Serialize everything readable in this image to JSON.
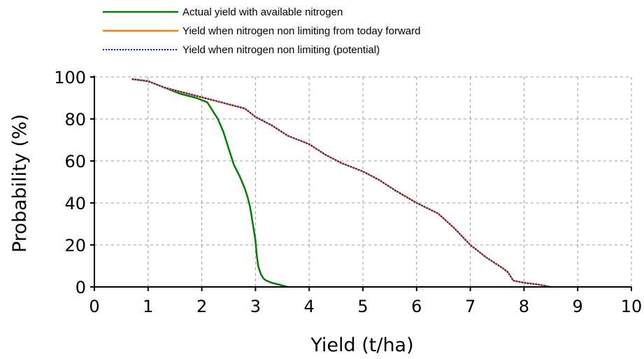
{
  "chart_data": {
    "type": "line",
    "xlabel": "Yield (t/ha)",
    "ylabel": "Probability (%)",
    "xlim": [
      0,
      10
    ],
    "ylim": [
      0,
      100
    ],
    "xticks": [
      "0",
      "1",
      "2",
      "3",
      "4",
      "5",
      "6",
      "7",
      "8",
      "9",
      "10"
    ],
    "yticks": [
      "0",
      "20",
      "40",
      "60",
      "80",
      "100"
    ],
    "grid": true,
    "legend_position": "top",
    "series": [
      {
        "name": "Actual yield with available nitrogen",
        "color": "#008000",
        "style": "solid",
        "x": [
          0.7,
          1.0,
          1.3,
          1.6,
          1.9,
          2.1,
          2.2,
          2.3,
          2.4,
          2.5,
          2.55,
          2.6,
          2.7,
          2.8,
          2.85,
          2.9,
          2.95,
          3.0,
          3.02,
          3.05,
          3.1,
          3.15,
          3.2,
          3.3,
          3.45,
          3.6
        ],
        "y": [
          99,
          98,
          95,
          92,
          90,
          88,
          84,
          80,
          74,
          66,
          62,
          58,
          53,
          47,
          43,
          38,
          30,
          22,
          16,
          10,
          6,
          4,
          3,
          2,
          1,
          0
        ]
      },
      {
        "name": "Yield when nitrogen non limiting from today forward",
        "color": "#ff8000",
        "style": "solid",
        "x": [
          0.7,
          1.0,
          1.3,
          1.6,
          1.9,
          2.2,
          2.5,
          2.8,
          3.0,
          3.3,
          3.6,
          4.0,
          4.3,
          4.6,
          5.0,
          5.3,
          5.6,
          6.0,
          6.4,
          6.7,
          7.0,
          7.3,
          7.6,
          7.7,
          7.8,
          8.0,
          8.3,
          8.5
        ],
        "y": [
          99,
          98,
          95,
          93,
          91,
          89,
          87,
          85,
          81,
          77,
          72,
          68,
          63,
          59,
          55,
          51,
          46,
          40,
          35,
          28,
          20,
          14,
          9,
          7,
          3,
          2,
          1,
          0
        ]
      },
      {
        "name": "Yield when nitrogen non limiting (potential)",
        "color": "#0000ff",
        "style": "dotted",
        "x": [
          0.7,
          1.0,
          1.3,
          1.6,
          1.9,
          2.2,
          2.5,
          2.8,
          3.0,
          3.3,
          3.6,
          4.0,
          4.3,
          4.6,
          5.0,
          5.3,
          5.6,
          6.0,
          6.4,
          6.7,
          7.0,
          7.3,
          7.6,
          7.7,
          7.8,
          8.0,
          8.3,
          8.5
        ],
        "y": [
          99,
          98,
          95,
          93,
          91,
          89,
          87,
          85,
          81,
          77,
          72,
          68,
          63,
          59,
          55,
          51,
          46,
          40,
          35,
          28,
          20,
          14,
          9,
          7,
          3,
          2,
          1,
          0
        ]
      }
    ]
  }
}
